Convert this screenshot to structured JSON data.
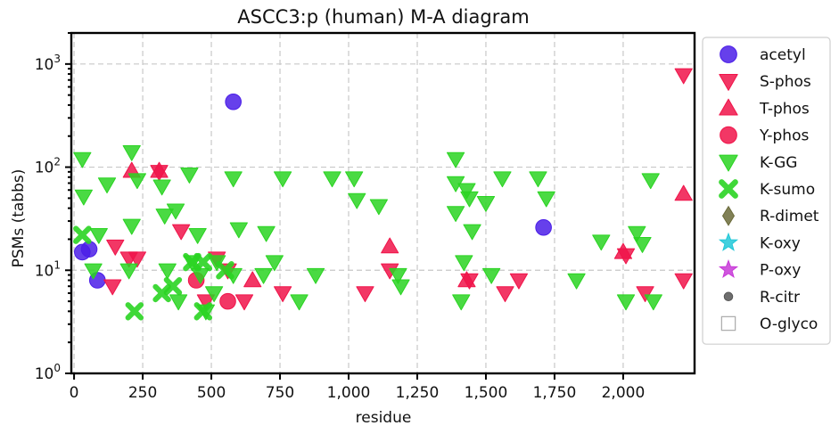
{
  "chart_data": {
    "type": "scatter",
    "title": "ASCC3:p (human) M-A diagram",
    "xlabel": "residue",
    "ylabel": "PSMs (tabbs)",
    "xlim": [
      -10,
      2260
    ],
    "ylim": [
      1,
      2000
    ],
    "yscale": "log",
    "grid": true,
    "legend_position": "right",
    "x_ticks": [
      {
        "value": 0,
        "label": "0"
      },
      {
        "value": 250,
        "label": "250"
      },
      {
        "value": 500,
        "label": "500"
      },
      {
        "value": 750,
        "label": "750"
      },
      {
        "value": 1000,
        "label": "1,000"
      },
      {
        "value": 1250,
        "label": "1,250"
      },
      {
        "value": 1500,
        "label": "1,500"
      },
      {
        "value": 1750,
        "label": "1,750"
      },
      {
        "value": 2000,
        "label": "2,000"
      }
    ],
    "y_ticks": [
      {
        "value": 1,
        "base": "10",
        "exp": "0"
      },
      {
        "value": 10,
        "base": "10",
        "exp": "1"
      },
      {
        "value": 100,
        "base": "10",
        "exp": "2"
      },
      {
        "value": 1000,
        "base": "10",
        "exp": "3"
      }
    ],
    "series": [
      {
        "name": "acetyl",
        "marker": "circle",
        "color": "#4b1ee8",
        "points": [
          [
            30,
            15
          ],
          [
            55,
            16
          ],
          [
            85,
            8
          ],
          [
            580,
            430
          ],
          [
            1710,
            26
          ]
        ]
      },
      {
        "name": "S-phos",
        "marker": "triangle-down",
        "color": "#f0144a",
        "points": [
          [
            150,
            17
          ],
          [
            140,
            7
          ],
          [
            200,
            13
          ],
          [
            230,
            13
          ],
          [
            310,
            90
          ],
          [
            390,
            24
          ],
          [
            480,
            5
          ],
          [
            520,
            13
          ],
          [
            560,
            10
          ],
          [
            620,
            5
          ],
          [
            760,
            6
          ],
          [
            1060,
            6
          ],
          [
            1150,
            10
          ],
          [
            1440,
            8
          ],
          [
            1570,
            6
          ],
          [
            1620,
            8
          ],
          [
            2010,
            14
          ],
          [
            2080,
            6
          ],
          [
            2220,
            780
          ],
          [
            2220,
            8
          ]
        ]
      },
      {
        "name": "T-phos",
        "marker": "triangle-up",
        "color": "#f0144a",
        "points": [
          [
            210,
            92
          ],
          [
            310,
            92
          ],
          [
            650,
            8
          ],
          [
            1150,
            17
          ],
          [
            1430,
            8
          ],
          [
            2000,
            15
          ],
          [
            2220,
            55
          ]
        ]
      },
      {
        "name": "Y-phos",
        "marker": "circle",
        "color": "#f0144a",
        "points": [
          [
            445,
            8
          ],
          [
            560,
            5
          ]
        ]
      },
      {
        "name": "K-GG",
        "marker": "triangle-down",
        "color": "#2ad422",
        "points": [
          [
            30,
            120
          ],
          [
            35,
            52
          ],
          [
            70,
            10
          ],
          [
            90,
            22
          ],
          [
            120,
            68
          ],
          [
            210,
            27
          ],
          [
            210,
            140
          ],
          [
            230,
            75
          ],
          [
            200,
            10
          ],
          [
            320,
            65
          ],
          [
            330,
            34
          ],
          [
            340,
            10
          ],
          [
            370,
            38
          ],
          [
            380,
            5
          ],
          [
            420,
            85
          ],
          [
            430,
            12
          ],
          [
            450,
            22
          ],
          [
            460,
            9
          ],
          [
            480,
            4
          ],
          [
            510,
            6
          ],
          [
            520,
            12
          ],
          [
            580,
            9
          ],
          [
            580,
            78
          ],
          [
            600,
            25
          ],
          [
            690,
            9
          ],
          [
            700,
            23
          ],
          [
            730,
            12
          ],
          [
            760,
            78
          ],
          [
            820,
            5
          ],
          [
            880,
            9
          ],
          [
            940,
            78
          ],
          [
            1020,
            78
          ],
          [
            1030,
            48
          ],
          [
            1110,
            42
          ],
          [
            1180,
            9
          ],
          [
            1190,
            7
          ],
          [
            1390,
            120
          ],
          [
            1390,
            70
          ],
          [
            1390,
            36
          ],
          [
            1410,
            5
          ],
          [
            1420,
            12
          ],
          [
            1430,
            60
          ],
          [
            1440,
            50
          ],
          [
            1450,
            24
          ],
          [
            1500,
            45
          ],
          [
            1520,
            9
          ],
          [
            1560,
            78
          ],
          [
            1690,
            78
          ],
          [
            1720,
            50
          ],
          [
            1830,
            8
          ],
          [
            1920,
            19
          ],
          [
            2010,
            5
          ],
          [
            2050,
            23
          ],
          [
            2070,
            18
          ],
          [
            2100,
            75
          ],
          [
            2110,
            5
          ]
        ]
      },
      {
        "name": "K-sumo",
        "marker": "x",
        "color": "#2ad422",
        "points": [
          [
            30,
            22
          ],
          [
            220,
            4
          ],
          [
            320,
            6
          ],
          [
            360,
            7
          ],
          [
            430,
            12
          ],
          [
            470,
            4
          ],
          [
            470,
            12
          ],
          [
            550,
            10
          ]
        ]
      },
      {
        "name": "R-dimet",
        "marker": "diamond",
        "color": "#6b6b3a",
        "points": []
      },
      {
        "name": "K-oxy",
        "marker": "star",
        "color": "#22c8d8",
        "points": []
      },
      {
        "name": "P-oxy",
        "marker": "star",
        "color": "#c83ad8",
        "points": []
      },
      {
        "name": "R-citr",
        "marker": "dot",
        "color": "#555555",
        "points": []
      },
      {
        "name": "O-glyco",
        "marker": "square-open",
        "color": "#aaaaaa",
        "points": []
      }
    ]
  }
}
